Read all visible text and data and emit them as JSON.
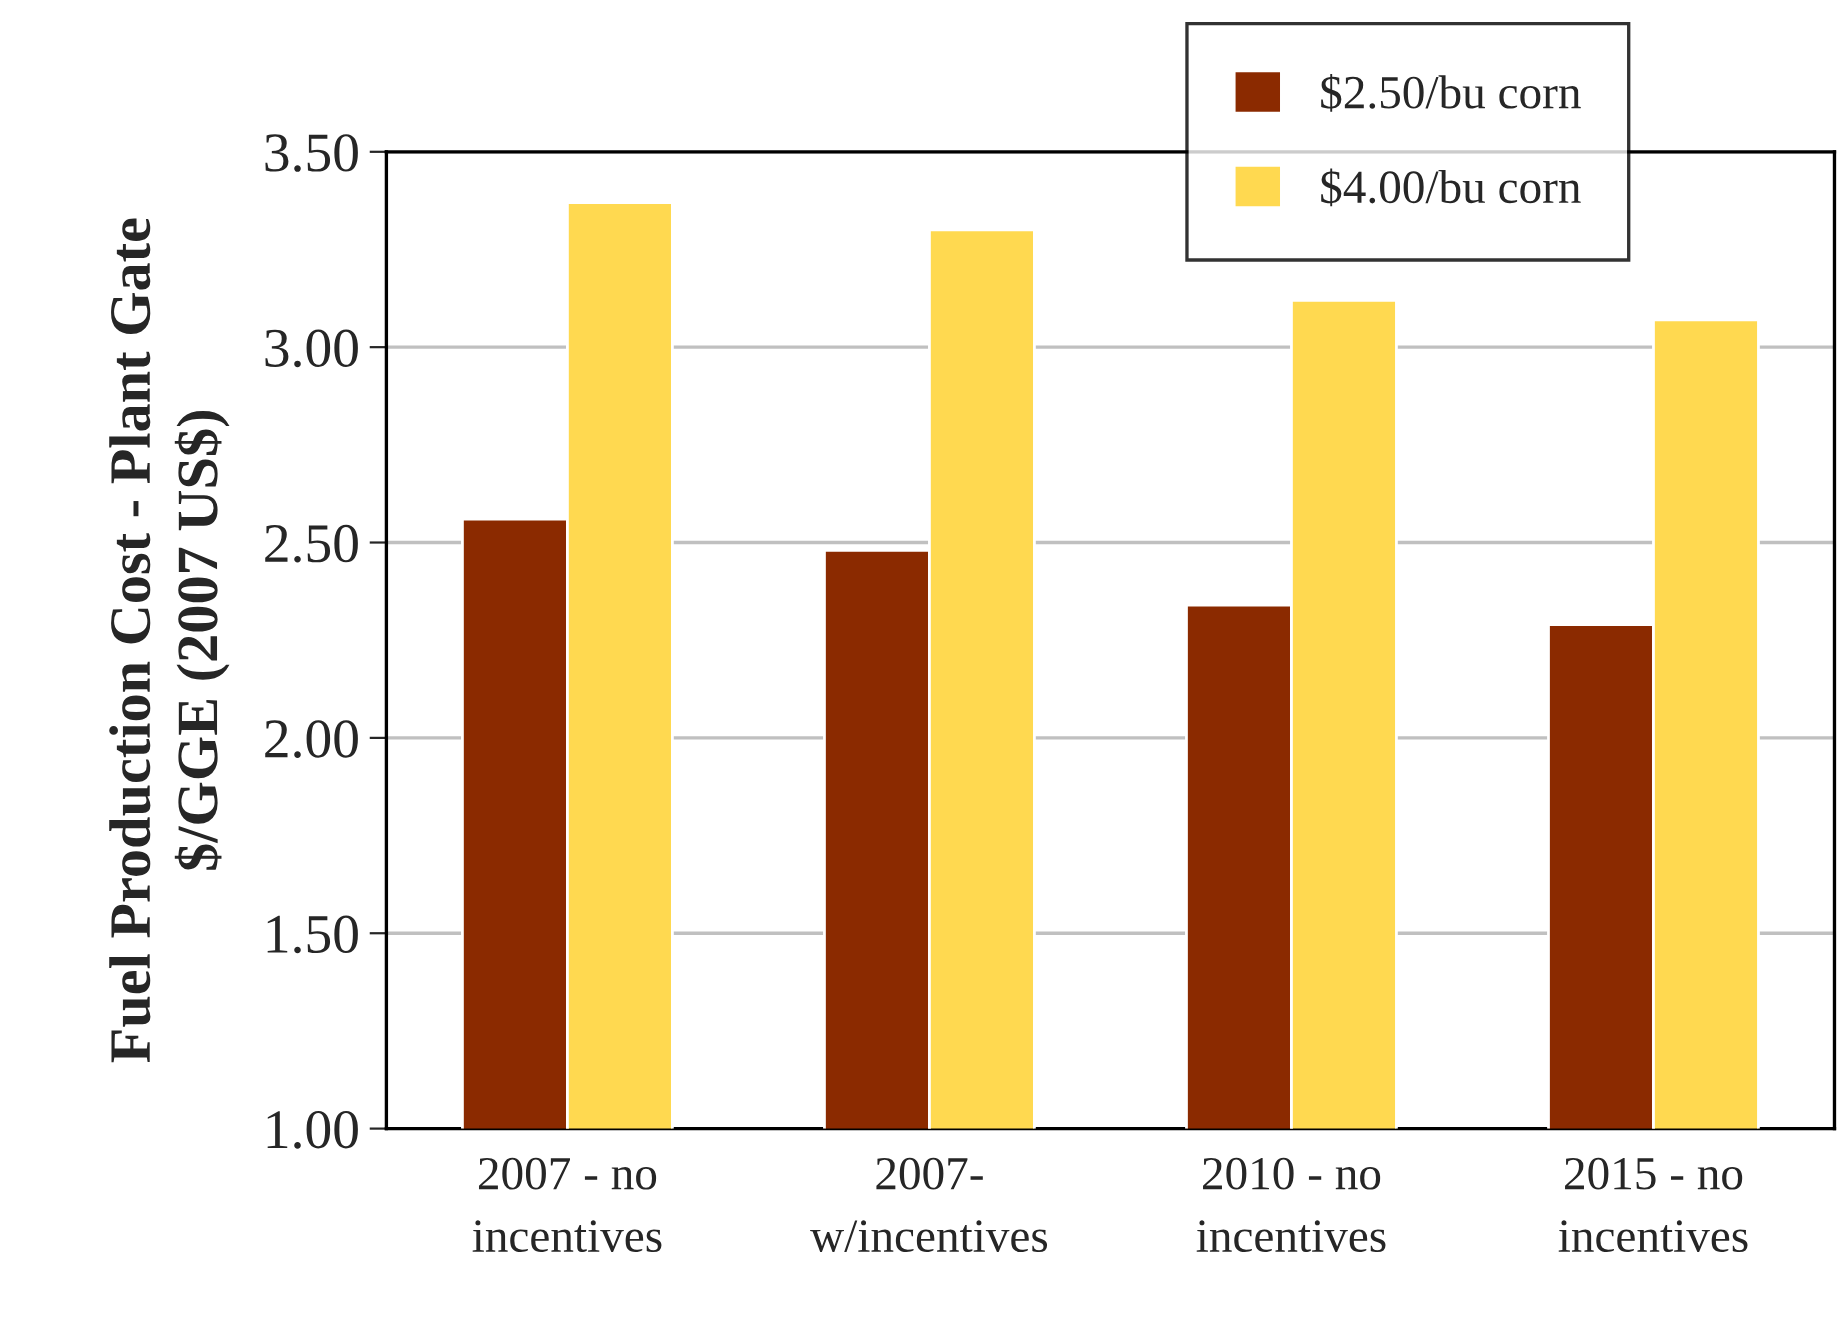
{
  "chart_data": {
    "type": "bar",
    "ylabel": "Fuel Production Cost - Plant Gate\n$/GGE (2007 US$)",
    "categories": [
      "2007 - no\nincentives",
      "2007-\nw/incentives",
      "2010 - no\nincentives",
      "2015 - no\nincentives"
    ],
    "series": [
      {
        "name": "$2.50/bu corn",
        "color": "#8b2a00",
        "values": [
          2.56,
          2.48,
          2.34,
          2.29
        ]
      },
      {
        "name": "$4.00/bu corn",
        "color": "#ffd950",
        "values": [
          3.37,
          3.3,
          3.12,
          3.07
        ]
      }
    ],
    "ylim": [
      1.0,
      3.5
    ],
    "yticks": [
      {
        "value": 1.0,
        "label": "1.00"
      },
      {
        "value": 1.5,
        "label": "1.50"
      },
      {
        "value": 2.0,
        "label": "2.00"
      },
      {
        "value": 2.5,
        "label": "2.50"
      },
      {
        "value": 3.0,
        "label": "3.00"
      },
      {
        "value": 3.5,
        "label": "3.50"
      }
    ],
    "grid": "y",
    "legend": "top right"
  }
}
